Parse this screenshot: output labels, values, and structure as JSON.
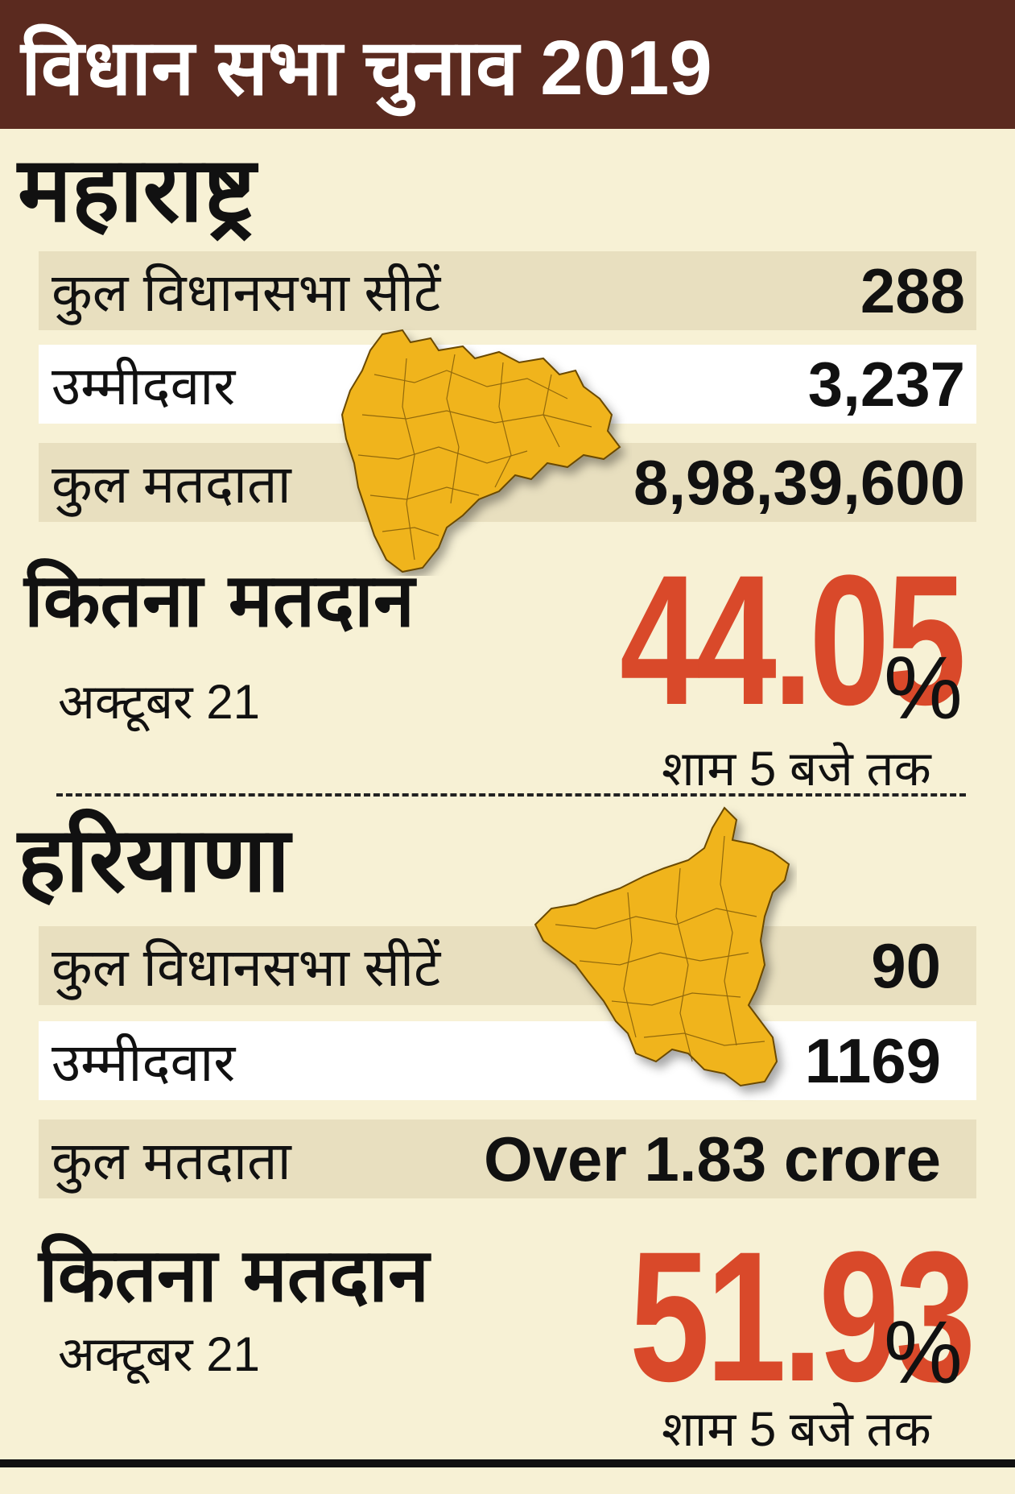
{
  "header": {
    "title": "विधान सभा चुनाव 2019"
  },
  "maharashtra": {
    "name": "महाराष्ट्र",
    "rows": [
      {
        "label": "कुल विधानसभा सीटें",
        "value": "288"
      },
      {
        "label": "उम्मीदवार",
        "value": "3,237"
      },
      {
        "label": "कुल मतदाता",
        "value": "8,98,39,600"
      }
    ],
    "turnout_label": "कितना मतदान",
    "date": "अक्टूबर 21",
    "turnout": "44.05",
    "percent_sign": "%",
    "time": "शाम 5 बजे तक"
  },
  "haryana": {
    "name": "हरियाणा",
    "rows": [
      {
        "label": "कुल विधानसभा सीटें",
        "value": "90"
      },
      {
        "label": "उम्मीदवार",
        "value": "1169"
      },
      {
        "label": "कुल मतदाता",
        "value": "Over 1.83 crore"
      }
    ],
    "turnout_label": "कितना मतदान",
    "date": "अक्टूबर 21",
    "turnout": "51.93",
    "percent_sign": "%",
    "time": "शाम 5 बजे तक"
  },
  "colors": {
    "header_bg": "#5b2a1f",
    "page_bg": "#f7f1d5",
    "row_shade": "#e8dfbf",
    "accent_red": "#d9492a",
    "map_fill": "#f0b41c"
  },
  "icons": [
    "maharashtra-map-icon",
    "haryana-map-icon"
  ]
}
